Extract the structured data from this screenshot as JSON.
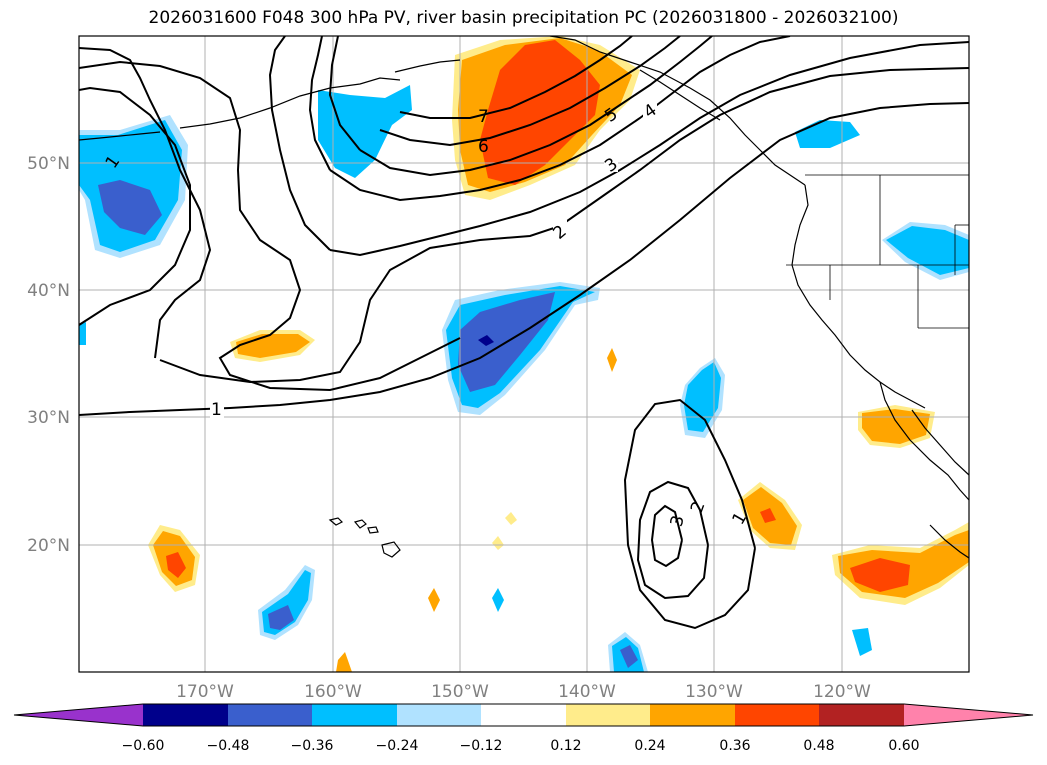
{
  "title": "2026031600 F048 300 hPa PV, river basin precipitation PC (2026031800 - 2026032100)",
  "map": {
    "lat_labels": [
      "50°N",
      "40°N",
      "30°N",
      "20°N"
    ],
    "lon_labels": [
      "170°W",
      "160°W",
      "150°W",
      "140°W",
      "130°W",
      "120°W"
    ],
    "lon_range": [
      -180,
      -110
    ],
    "lat_range": [
      10,
      60
    ]
  },
  "pv_contours": {
    "label_values": [
      "1",
      "2",
      "3",
      "4",
      "5",
      "6",
      "7"
    ],
    "line_color": "#000000"
  },
  "colorbar": {
    "ticks": [
      "−0.60",
      "−0.48",
      "−0.36",
      "−0.24",
      "−0.12",
      "0.12",
      "0.24",
      "0.36",
      "0.48",
      "0.60"
    ],
    "colors": [
      "#9932cc",
      "#00008b",
      "#3a5fcd",
      "#00bfff",
      "#b0e2ff",
      "#ffffff",
      "#ffec8b",
      "#ffa500",
      "#ff4500",
      "#b22222",
      "#ff82ab"
    ]
  }
}
